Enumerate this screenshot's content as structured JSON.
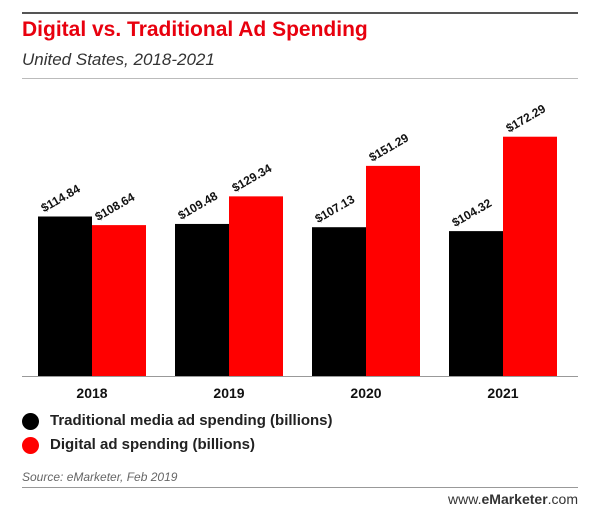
{
  "header": {
    "title": "Digital vs. Traditional Ad Spending",
    "subtitle": "United States, 2018-2021"
  },
  "footer": {
    "source": "Source: eMarketer, Feb 2019",
    "brand_prefix": "www.",
    "brand_name": "eMarketer",
    "brand_suffix": ".com"
  },
  "colors": {
    "traditional": "#000000",
    "digital": "#ff0000"
  },
  "chart_data": {
    "type": "bar",
    "title": "Digital vs. Traditional Ad Spending",
    "subtitle": "United States, 2018-2021",
    "xlabel": "",
    "ylabel": "",
    "ylim": [
      0,
      180
    ],
    "grid": false,
    "legend": "bottom-left",
    "categories": [
      "2018",
      "2019",
      "2020",
      "2021"
    ],
    "series": [
      {
        "name": "Traditional media ad spending (billions)",
        "values": [
          114.84,
          109.48,
          107.13,
          104.32
        ],
        "labels": [
          "$114.84",
          "$109.48",
          "$107.13",
          "$104.32"
        ]
      },
      {
        "name": "Digital ad spending (billions)",
        "values": [
          108.64,
          129.34,
          151.29,
          172.29
        ],
        "labels": [
          "$108.64",
          "$129.34",
          "$151.29",
          "$172.29"
        ]
      }
    ]
  }
}
